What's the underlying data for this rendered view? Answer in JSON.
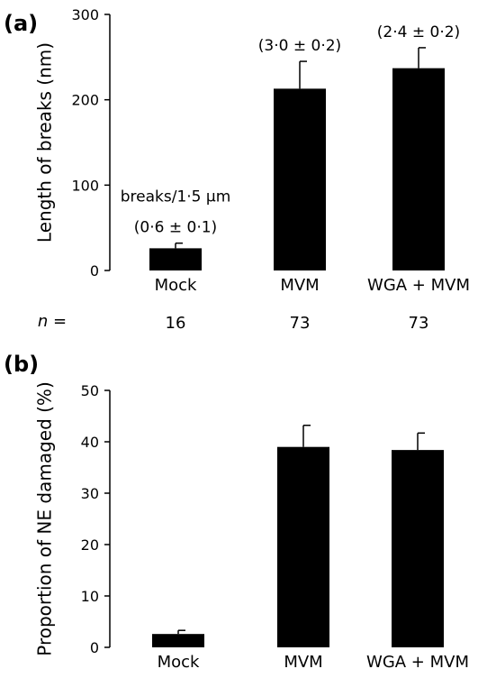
{
  "chart_data": [
    {
      "panel": "(a)",
      "type": "bar",
      "ylabel": "Length of breaks (nm)",
      "ylim": [
        0,
        300
      ],
      "yticks": [
        0,
        100,
        200,
        300
      ],
      "categories": [
        "Mock",
        "MVM",
        "WGA + MVM"
      ],
      "values": [
        26,
        213,
        237
      ],
      "errors": [
        6,
        32,
        24
      ],
      "bar_annotations": [
        "(0·6 ± 0·1)",
        "(3·0 ± 0·2)",
        "(2·4 ± 0·2)"
      ],
      "annotation_title": "breaks/1·5 µm",
      "n_label": "n =",
      "n_values": [
        "16",
        "73",
        "73"
      ],
      "bar_color": "#000000"
    },
    {
      "panel": "(b)",
      "type": "bar",
      "ylabel": "Proportion of NE damaged (%)",
      "ylim": [
        0,
        50
      ],
      "yticks": [
        0,
        10,
        20,
        30,
        40,
        50
      ],
      "categories": [
        "Mock",
        "MVM",
        "WGA + MVM"
      ],
      "values": [
        2.6,
        39,
        38.4
      ],
      "errors": [
        0.7,
        4.2,
        3.3
      ],
      "bar_color": "#000000"
    }
  ]
}
